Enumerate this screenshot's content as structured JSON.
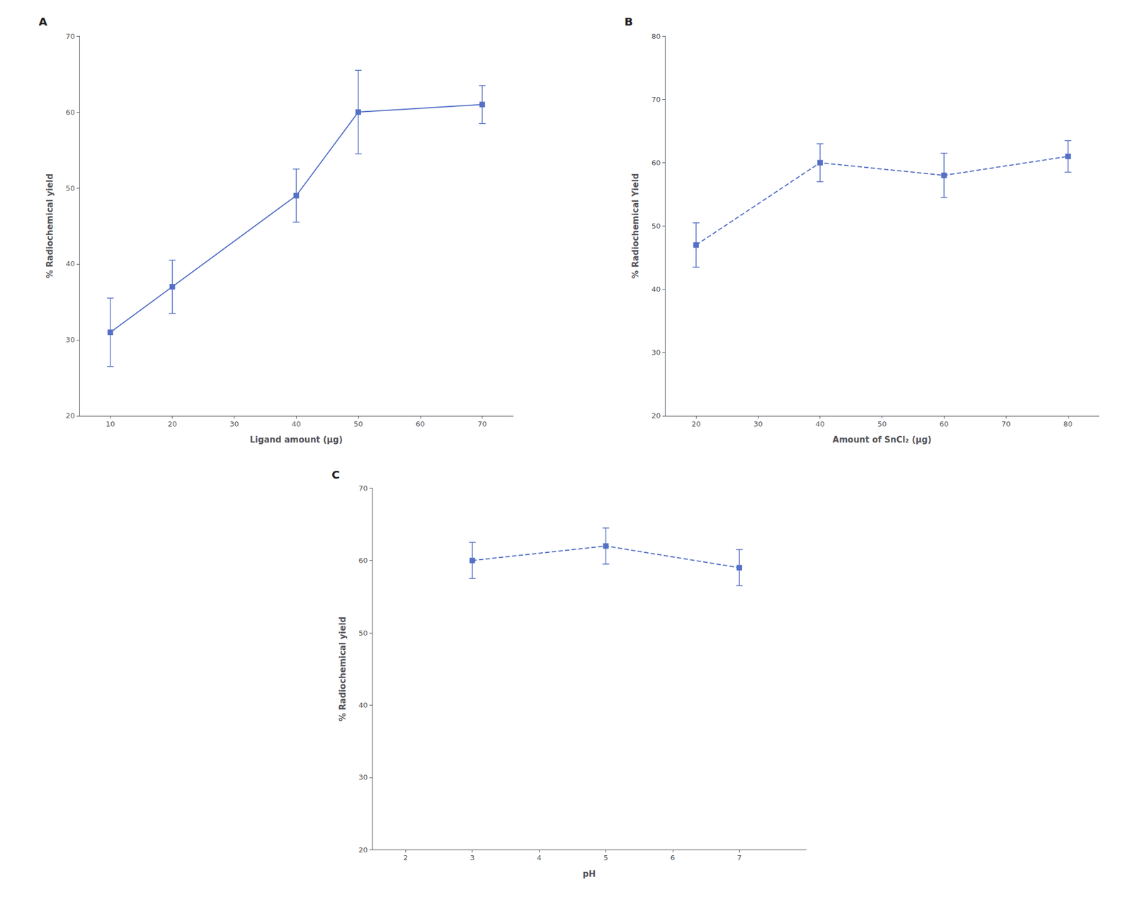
{
  "chart_data": [
    {
      "type": "line",
      "title": "A",
      "x": [
        10,
        20,
        40,
        50,
        70
      ],
      "values": [
        31,
        37,
        49,
        60,
        61
      ],
      "yerr": [
        4.5,
        3.5,
        3.5,
        5.5,
        2.5
      ],
      "xlabel": "Ligand amount (μg)",
      "ylabel": "% Radiochemical yield",
      "xlim": [
        5,
        75
      ],
      "ylim": [
        20,
        70
      ],
      "xticks": [
        10,
        20,
        30,
        40,
        50,
        60,
        70
      ],
      "yticks": [
        20,
        30,
        40,
        50,
        60,
        70
      ],
      "line_style": "solid",
      "marker": "square",
      "color": "#5470c6",
      "grid": false
    },
    {
      "type": "line",
      "title": "B",
      "x": [
        20,
        40,
        60,
        80
      ],
      "values": [
        47,
        60,
        58,
        61
      ],
      "yerr": [
        3.5,
        3.0,
        3.5,
        2.5
      ],
      "xlabel": "Amount of SnCl₂ (μg)",
      "ylabel": "% Radiochemical Yield",
      "xlim": [
        15,
        85
      ],
      "ylim": [
        20,
        80
      ],
      "xticks": [
        20,
        30,
        40,
        50,
        60,
        70,
        80
      ],
      "yticks": [
        20,
        30,
        40,
        50,
        60,
        70,
        80
      ],
      "line_style": "dashed",
      "marker": "square",
      "color": "#5470c6",
      "grid": false
    },
    {
      "type": "line",
      "title": "C",
      "x": [
        3,
        5,
        7
      ],
      "values": [
        60,
        62,
        59
      ],
      "yerr": [
        2.5,
        2.5,
        2.5
      ],
      "xlabel": "pH",
      "ylabel": "% Radiochemical yield",
      "xlim": [
        1.5,
        8
      ],
      "ylim": [
        20,
        70
      ],
      "xticks": [
        2,
        3,
        4,
        5,
        6,
        7
      ],
      "yticks": [
        20,
        30,
        40,
        50,
        60,
        70
      ],
      "line_style": "dashed",
      "marker": "square",
      "color": "#5470c6",
      "grid": false
    }
  ]
}
